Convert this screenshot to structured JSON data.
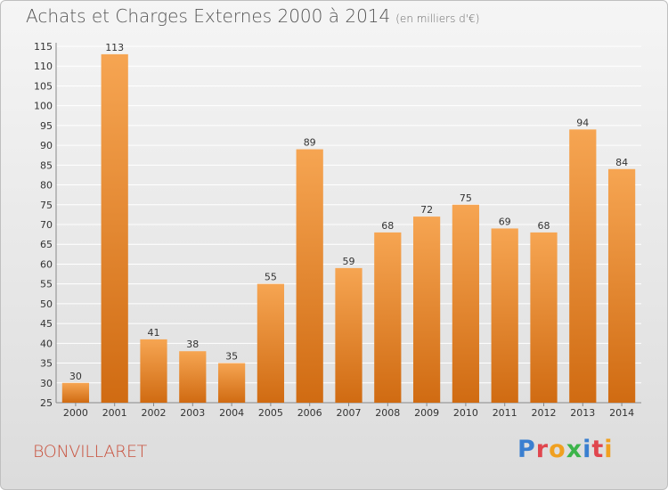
{
  "header": {
    "title": "Achats et Charges Externes 2000 à 2014",
    "subtitle": "(en milliers d'€)"
  },
  "place_name": "BONVILLARET",
  "brand": {
    "letters": [
      "P",
      "r",
      "o",
      "x",
      "i",
      "t",
      "i"
    ],
    "colors": [
      "#3a7fd0",
      "#e0464e",
      "#f0a020",
      "#3cb44a",
      "#3a7fd0",
      "#e0464e",
      "#f0a020"
    ]
  },
  "colors": {
    "bar_top": "#f6a552",
    "bar_bottom": "#d06b12",
    "grid": "#ffffff",
    "text": "#333333"
  },
  "chart_data": {
    "type": "bar",
    "title": "Achats et Charges Externes 2000 à 2014",
    "subtitle": "(en milliers d'€)",
    "categories": [
      "2000",
      "2001",
      "2002",
      "2003",
      "2004",
      "2005",
      "2006",
      "2007",
      "2008",
      "2009",
      "2010",
      "2011",
      "2012",
      "2013",
      "2014"
    ],
    "values": [
      30,
      113,
      41,
      38,
      35,
      55,
      89,
      59,
      68,
      72,
      75,
      69,
      68,
      94,
      84
    ],
    "ylim": [
      25,
      115
    ],
    "yticks": [
      25,
      30,
      35,
      40,
      45,
      50,
      55,
      60,
      65,
      70,
      75,
      80,
      85,
      90,
      95,
      100,
      105,
      110,
      115
    ],
    "grid": true,
    "data_labels": true
  }
}
